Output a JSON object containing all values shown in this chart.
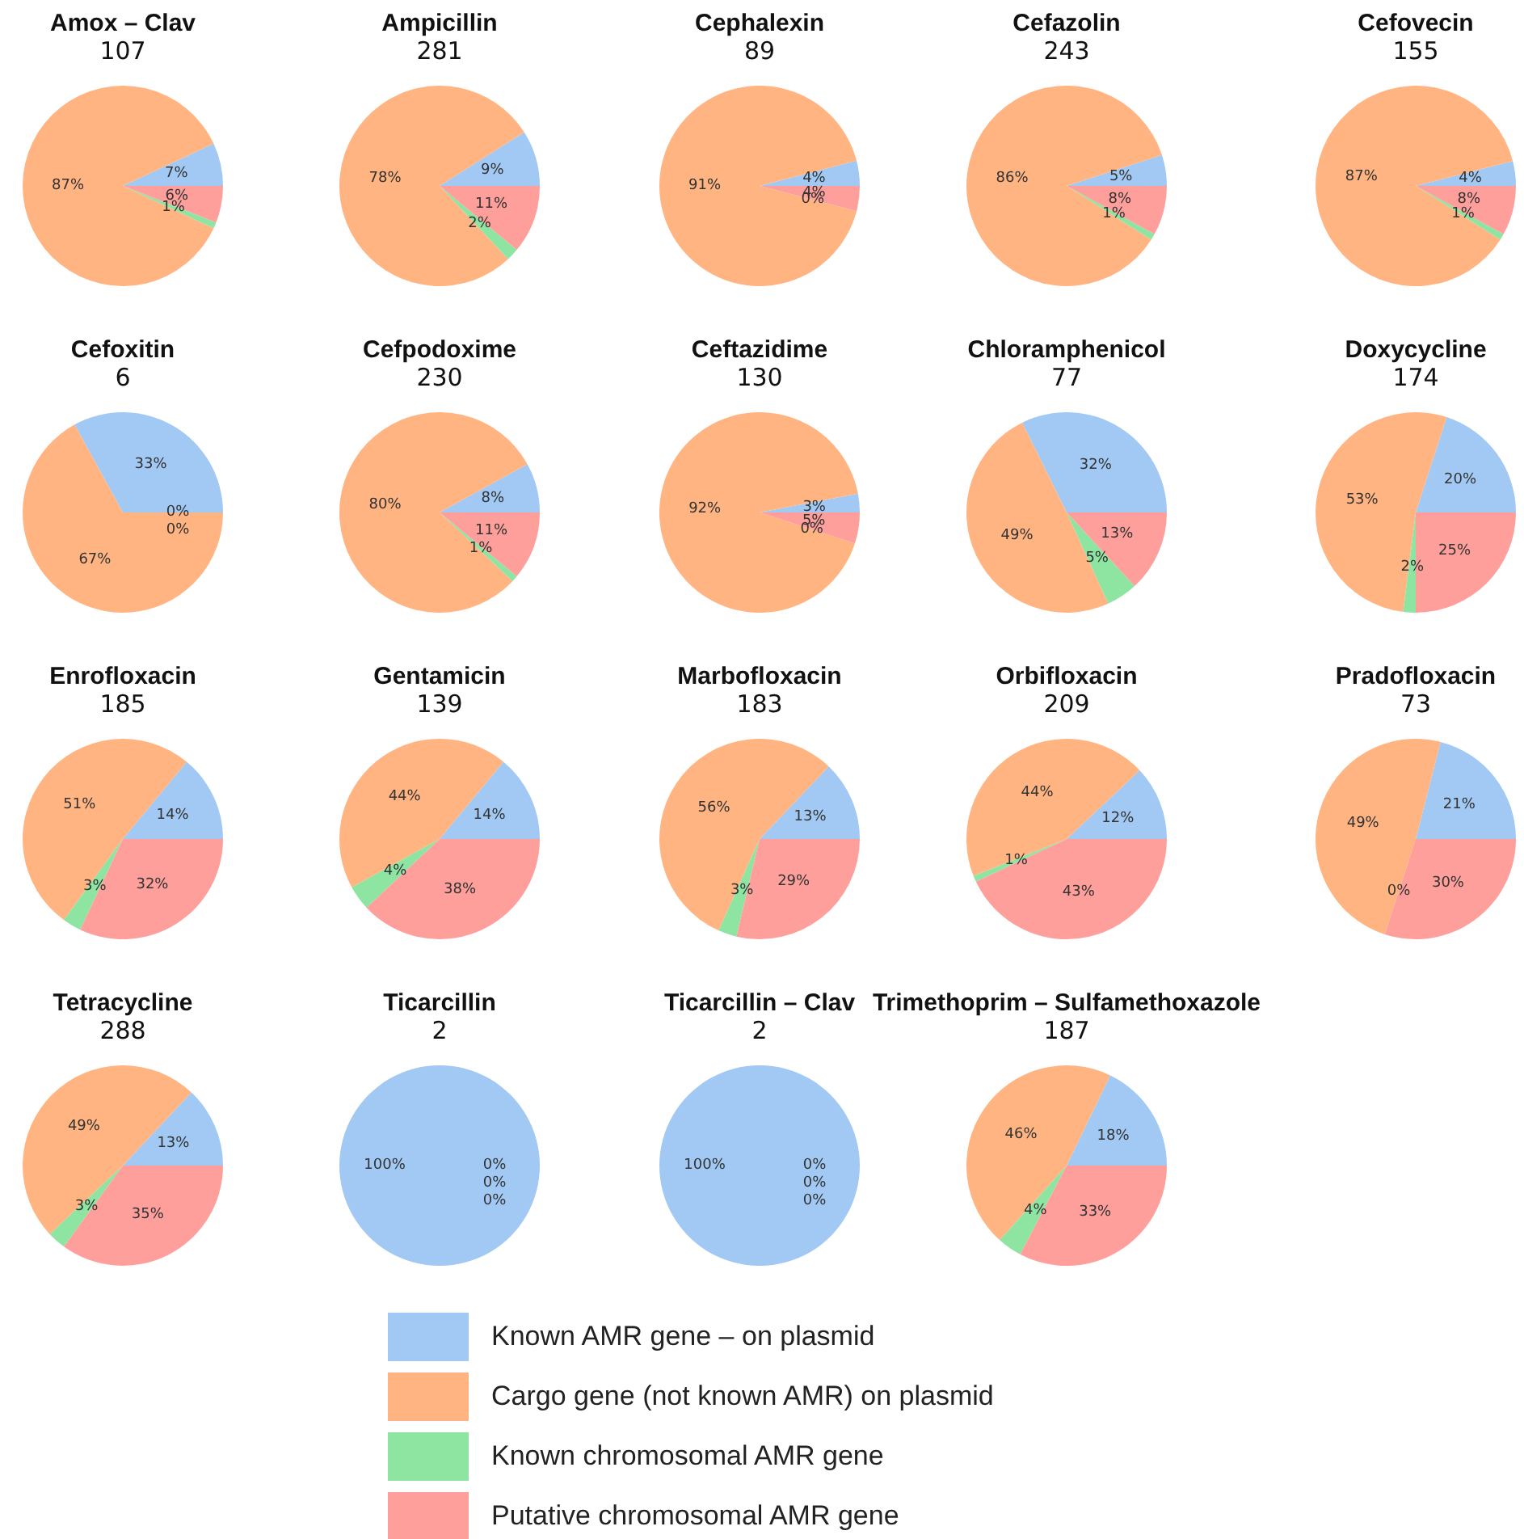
{
  "chart_data": [
    {
      "type": "pie",
      "title": "Amox – Clav",
      "subtitle": "107",
      "categories": [
        "Known AMR gene – on plasmid",
        "Cargo gene (not known AMR) on plasmid",
        "Known chromosomal AMR gene",
        "Putative chromosomal AMR gene"
      ],
      "values": [
        7,
        87,
        1,
        6
      ],
      "value_labels": [
        "7%",
        "87%",
        "1%",
        "6%"
      ],
      "colors": [
        "#a1c9f4",
        "#ffb482",
        "#8de5a1",
        "#ff9f9b"
      ],
      "legend": "bottom"
    },
    {
      "type": "pie",
      "title": "Ampicillin",
      "subtitle": "281",
      "categories": [
        null,
        null,
        null,
        null
      ],
      "values": [
        9,
        78,
        2,
        11
      ],
      "value_labels": [
        "9%",
        "78%",
        "2%",
        "11%"
      ],
      "colors": [
        "#a1c9f4",
        "#ffb482",
        "#8de5a1",
        "#ff9f9b"
      ]
    },
    {
      "type": "pie",
      "title": "Cephalexin",
      "subtitle": "89",
      "categories": [
        null,
        null,
        null,
        null
      ],
      "values": [
        4,
        91,
        0,
        4
      ],
      "value_labels": [
        "4%",
        "91%",
        "0%",
        "4%"
      ],
      "colors": [
        "#a1c9f4",
        "#ffb482",
        "#8de5a1",
        "#ff9f9b"
      ]
    },
    {
      "type": "pie",
      "title": "Cefazolin",
      "subtitle": "243",
      "categories": [
        null,
        null,
        null,
        null
      ],
      "values": [
        5,
        86,
        1,
        8
      ],
      "value_labels": [
        "5%",
        "86%",
        "1%",
        "8%"
      ],
      "colors": [
        "#a1c9f4",
        "#ffb482",
        "#8de5a1",
        "#ff9f9b"
      ]
    },
    {
      "type": "pie",
      "title": "Cefovecin",
      "subtitle": "155",
      "categories": [
        null,
        null,
        null,
        null
      ],
      "values": [
        4,
        87,
        1,
        8
      ],
      "value_labels": [
        "4%",
        "87%",
        "1%",
        "8%"
      ],
      "colors": [
        "#a1c9f4",
        "#ffb482",
        "#8de5a1",
        "#ff9f9b"
      ]
    },
    {
      "type": "pie",
      "title": "Cefoxitin",
      "subtitle": "6",
      "categories": [
        null,
        null,
        null,
        null
      ],
      "values": [
        33,
        67,
        0,
        0
      ],
      "value_labels": [
        "33%",
        "67%",
        "0%",
        "0%"
      ],
      "colors": [
        "#a1c9f4",
        "#ffb482",
        "#8de5a1",
        "#ff9f9b"
      ]
    },
    {
      "type": "pie",
      "title": "Cefpodoxime",
      "subtitle": "230",
      "categories": [
        null,
        null,
        null,
        null
      ],
      "values": [
        8,
        80,
        1,
        11
      ],
      "value_labels": [
        "8%",
        "80%",
        "1%",
        "11%"
      ],
      "colors": [
        "#a1c9f4",
        "#ffb482",
        "#8de5a1",
        "#ff9f9b"
      ]
    },
    {
      "type": "pie",
      "title": "Ceftazidime",
      "subtitle": "130",
      "categories": [
        null,
        null,
        null,
        null
      ],
      "values": [
        3,
        92,
        0,
        5
      ],
      "value_labels": [
        "3%",
        "92%",
        "0%",
        "5%"
      ],
      "colors": [
        "#a1c9f4",
        "#ffb482",
        "#8de5a1",
        "#ff9f9b"
      ]
    },
    {
      "type": "pie",
      "title": "Chloramphenicol",
      "subtitle": "77",
      "categories": [
        null,
        null,
        null,
        null
      ],
      "values": [
        32,
        49,
        5,
        13
      ],
      "value_labels": [
        "32%",
        "49%",
        "5%",
        "13%"
      ],
      "colors": [
        "#a1c9f4",
        "#ffb482",
        "#8de5a1",
        "#ff9f9b"
      ]
    },
    {
      "type": "pie",
      "title": "Doxycycline",
      "subtitle": "174",
      "categories": [
        null,
        null,
        null,
        null
      ],
      "values": [
        20,
        53,
        2,
        25
      ],
      "value_labels": [
        "20%",
        "53%",
        "2%",
        "25%"
      ],
      "colors": [
        "#a1c9f4",
        "#ffb482",
        "#8de5a1",
        "#ff9f9b"
      ]
    },
    {
      "type": "pie",
      "title": "Enrofloxacin",
      "subtitle": "185",
      "categories": [
        null,
        null,
        null,
        null
      ],
      "values": [
        14,
        51,
        3,
        32
      ],
      "value_labels": [
        "14%",
        "51%",
        "3%",
        "32%"
      ],
      "colors": [
        "#a1c9f4",
        "#ffb482",
        "#8de5a1",
        "#ff9f9b"
      ]
    },
    {
      "type": "pie",
      "title": "Gentamicin",
      "subtitle": "139",
      "categories": [
        null,
        null,
        null,
        null
      ],
      "values": [
        14,
        44,
        4,
        38
      ],
      "value_labels": [
        "14%",
        "44%",
        "4%",
        "38%"
      ],
      "colors": [
        "#a1c9f4",
        "#ffb482",
        "#8de5a1",
        "#ff9f9b"
      ]
    },
    {
      "type": "pie",
      "title": "Marbofloxacin",
      "subtitle": "183",
      "categories": [
        null,
        null,
        null,
        null
      ],
      "values": [
        13,
        56,
        3,
        29
      ],
      "value_labels": [
        "13%",
        "56%",
        "3%",
        "29%"
      ],
      "colors": [
        "#a1c9f4",
        "#ffb482",
        "#8de5a1",
        "#ff9f9b"
      ]
    },
    {
      "type": "pie",
      "title": "Orbifloxacin",
      "subtitle": "209",
      "categories": [
        null,
        null,
        null,
        null
      ],
      "values": [
        12,
        44,
        1,
        43
      ],
      "value_labels": [
        "12%",
        "44%",
        "1%",
        "43%"
      ],
      "colors": [
        "#a1c9f4",
        "#ffb482",
        "#8de5a1",
        "#ff9f9b"
      ]
    },
    {
      "type": "pie",
      "title": "Pradofloxacin",
      "subtitle": "73",
      "categories": [
        null,
        null,
        null,
        null
      ],
      "values": [
        21,
        49,
        0,
        30
      ],
      "value_labels": [
        "21%",
        "49%",
        "0%",
        "30%"
      ],
      "colors": [
        "#a1c9f4",
        "#ffb482",
        "#8de5a1",
        "#ff9f9b"
      ]
    },
    {
      "type": "pie",
      "title": "Tetracycline",
      "subtitle": "288",
      "categories": [
        null,
        null,
        null,
        null
      ],
      "values": [
        13,
        49,
        3,
        35
      ],
      "value_labels": [
        "13%",
        "49%",
        "3%",
        "35%"
      ],
      "colors": [
        "#a1c9f4",
        "#ffb482",
        "#8de5a1",
        "#ff9f9b"
      ]
    },
    {
      "type": "pie",
      "title": "Ticarcillin",
      "subtitle": "2",
      "categories": [
        null,
        null,
        null,
        null
      ],
      "values": [
        100,
        0,
        0,
        0
      ],
      "value_labels": [
        "100%",
        "0%",
        "0%",
        "0%"
      ],
      "colors": [
        "#a1c9f4",
        "#ffb482",
        "#8de5a1",
        "#ff9f9b"
      ]
    },
    {
      "type": "pie",
      "title": "Ticarcillin – Clav",
      "subtitle": "2",
      "categories": [
        null,
        null,
        null,
        null
      ],
      "values": [
        100,
        0,
        0,
        0
      ],
      "value_labels": [
        "100%",
        "0%",
        "0%",
        "0%"
      ],
      "colors": [
        "#a1c9f4",
        "#ffb482",
        "#8de5a1",
        "#ff9f9b"
      ]
    },
    {
      "type": "pie",
      "title": "Trimethoprim – Sulfamethoxazole",
      "subtitle": "187",
      "categories": [
        null,
        null,
        null,
        null
      ],
      "values": [
        18,
        46,
        4,
        33
      ],
      "value_labels": [
        "18%",
        "46%",
        "4%",
        "33%"
      ],
      "colors": [
        "#a1c9f4",
        "#ffb482",
        "#8de5a1",
        "#ff9f9b"
      ]
    }
  ]
}
